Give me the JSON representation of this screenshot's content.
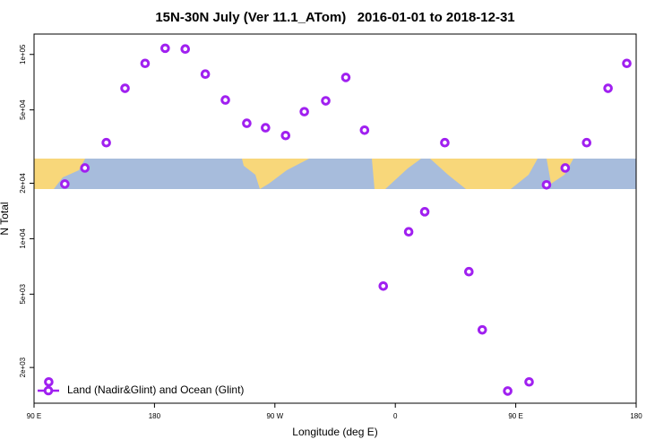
{
  "chart_data": {
    "type": "scatter",
    "title": "15N-30N July (Ver 11.1_ATom)   2016-01-01 to 2018-12-31",
    "x_label": "Longitude (deg E)",
    "y_label": "N Total",
    "log_y": true,
    "xlim": [
      90,
      540
    ],
    "xticks": [
      {
        "value": 90,
        "label": "90 E"
      },
      180,
      {
        "value": 270,
        "label": "90 W"
      },
      {
        "value": 360,
        "label": "0"
      },
      {
        "value": 450,
        "label": "90 E"
      },
      {
        "value": 540,
        "label": "180"
      }
    ],
    "ylim": [
      1280,
      129000
    ],
    "yticks": [
      {
        "value": 2000,
        "label": "2e+03"
      },
      {
        "value": 5000,
        "label": "5e+03"
      },
      {
        "value": 10000,
        "label": "1e+04"
      },
      {
        "value": 20000,
        "label": "2e+04"
      },
      {
        "value": 50000,
        "label": "5e+04"
      },
      {
        "value": 100000,
        "label": "1e+05"
      }
    ],
    "legend_position": "bottom-left",
    "series": [
      {
        "name": "Land (Nadir&Glint) and Ocean (Glint)",
        "color": "#a020f0",
        "x": [
          101,
          113,
          128,
          144,
          158,
          173,
          188,
          203,
          218,
          233,
          249,
          263,
          278,
          292,
          308,
          323,
          337,
          351,
          370,
          382,
          397,
          415,
          425,
          444,
          460,
          473,
          487,
          503,
          519,
          533
        ],
        "values": [
          1670,
          19800,
          24200,
          33200,
          65500,
          89400,
          108000,
          107000,
          78200,
          56600,
          42300,
          40000,
          36300,
          48900,
          56000,
          75000,
          38800,
          5530,
          10900,
          14000,
          33200,
          6620,
          3200,
          1490,
          1670,
          19600,
          24200,
          33200,
          65500,
          89400
        ]
      }
    ]
  }
}
